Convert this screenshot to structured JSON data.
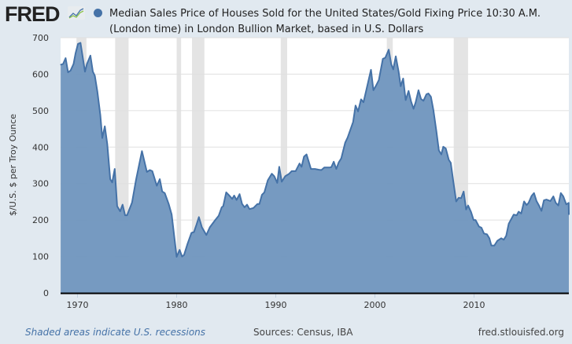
{
  "header": {
    "logo_text": "FRED",
    "title": "Median Sales Price of Houses Sold for the United States/Gold Fixing Price 10:30 A.M. (London time) in London Bullion Market, based in U.S. Dollars"
  },
  "footer": {
    "recession_note": "Shaded areas indicate U.S. recessions",
    "sources": "Sources: Census, IBA",
    "site": "fred.stlouisfed.org"
  },
  "colors": {
    "line": "#4572a7",
    "fill": "#7297bf",
    "recession": "#e4e4e4"
  },
  "chart_data": {
    "type": "area",
    "title": "Median Sales Price of Houses Sold for the United States/Gold Fixing Price 10:30 A.M. (London time) in London Bullion Market, based in U.S. Dollars",
    "xlabel": "",
    "ylabel": "$/U.S. $ per Troy Ounce",
    "ylim": [
      0,
      700
    ],
    "xlim": [
      1968.3,
      2019.75
    ],
    "yticks": [
      0,
      100,
      200,
      300,
      400,
      500,
      600,
      700
    ],
    "xticks": [
      1970,
      1980,
      1990,
      2000,
      2010
    ],
    "grid": true,
    "legend": "top",
    "recessions": [
      [
        1969.9,
        1970.9
      ],
      [
        1973.8,
        1975.15
      ],
      [
        1980.0,
        1980.45
      ],
      [
        1981.55,
        1982.8
      ],
      [
        1990.5,
        1991.15
      ],
      [
        2001.2,
        2001.8
      ],
      [
        2007.95,
        2009.4
      ]
    ],
    "x": [
      1968.3,
      1968.55,
      1968.8,
      1969.05,
      1969.3,
      1969.6,
      1969.8,
      1970.05,
      1970.3,
      1970.75,
      1970.95,
      1971.3,
      1971.55,
      1971.75,
      1972.0,
      1972.3,
      1972.5,
      1972.75,
      1973.0,
      1973.3,
      1973.5,
      1973.75,
      1974.0,
      1974.3,
      1974.55,
      1974.8,
      1975.0,
      1975.5,
      1975.9,
      1976.5,
      1977.0,
      1977.3,
      1977.55,
      1978.0,
      1978.3,
      1978.55,
      1978.8,
      1979.2,
      1979.5,
      1980.0,
      1980.3,
      1980.55,
      1980.75,
      1981.1,
      1981.5,
      1981.75,
      1982.0,
      1982.25,
      1982.55,
      1983.0,
      1983.35,
      1983.9,
      1984.25,
      1984.55,
      1984.7,
      1985.0,
      1985.35,
      1985.6,
      1985.8,
      1986.05,
      1986.35,
      1986.6,
      1986.85,
      1987.1,
      1987.35,
      1987.75,
      1988.15,
      1988.35,
      1988.6,
      1988.85,
      1989.2,
      1989.6,
      1989.85,
      1990.15,
      1990.35,
      1990.6,
      1990.95,
      1991.35,
      1991.6,
      1992.0,
      1992.4,
      1992.6,
      1992.85,
      1993.1,
      1993.55,
      1993.95,
      1994.35,
      1994.6,
      1994.9,
      1995.4,
      1995.6,
      1995.85,
      1996.1,
      1996.35,
      1996.6,
      1997.0,
      1997.25,
      1997.8,
      1998.05,
      1998.3,
      1998.6,
      1998.85,
      1999.6,
      1999.85,
      2000.1,
      2000.4,
      2000.8,
      2001.05,
      2001.4,
      2001.65,
      2001.85,
      2002.1,
      2002.4,
      2002.6,
      2002.85,
      2003.1,
      2003.4,
      2003.65,
      2003.9,
      2004.1,
      2004.4,
      2004.65,
      2004.9,
      2005.2,
      2005.4,
      2005.65,
      2005.9,
      2006.2,
      2006.45,
      2006.7,
      2006.9,
      2007.15,
      2007.45,
      2007.65,
      2007.9,
      2008.2,
      2008.45,
      2008.7,
      2008.95,
      2009.2,
      2009.4,
      2009.7,
      2009.95,
      2010.15,
      2010.5,
      2010.75,
      2011.0,
      2011.3,
      2011.55,
      2011.75,
      2012.05,
      2012.35,
      2012.75,
      2013.0,
      2013.25,
      2013.5,
      2014.0,
      2014.3,
      2014.5,
      2014.75,
      2015.05,
      2015.3,
      2015.5,
      2015.8,
      2016.05,
      2016.3,
      2016.55,
      2016.8,
      2017.05,
      2017.3,
      2017.7,
      2018.0,
      2018.25,
      2018.5,
      2018.75,
      2019.0,
      2019.3,
      2019.55,
      2019.75
    ],
    "series": [
      {
        "name": "Median Sales Price of Houses Sold / Gold Fixing Price",
        "values": [
          626,
          628,
          644,
          605,
          610,
          628,
          657,
          683,
          686,
          607,
          628,
          651,
          607,
          596,
          553,
          488,
          425,
          457,
          409,
          312,
          303,
          340,
          238,
          224,
          242,
          213,
          213,
          248,
          309,
          389,
          332,
          337,
          334,
          294,
          312,
          278,
          274,
          244,
          215,
          99,
          118,
          100,
          104,
          135,
          165,
          167,
          187,
          208,
          180,
          159,
          180,
          200,
          212,
          235,
          238,
          276,
          266,
          258,
          267,
          255,
          271,
          244,
          235,
          242,
          230,
          233,
          244,
          244,
          269,
          276,
          309,
          327,
          320,
          302,
          346,
          305,
          320,
          327,
          334,
          334,
          355,
          346,
          374,
          380,
          340,
          340,
          338,
          337,
          344,
          344,
          345,
          360,
          340,
          358,
          369,
          412,
          426,
          469,
          514,
          498,
          531,
          523,
          612,
          556,
          568,
          584,
          642,
          645,
          667,
          627,
          613,
          649,
          606,
          567,
          588,
          529,
          554,
          525,
          505,
          522,
          556,
          532,
          527,
          545,
          547,
          538,
          502,
          444,
          391,
          380,
          401,
          396,
          365,
          357,
          308,
          251,
          261,
          260,
          278,
          229,
          240,
          222,
          200,
          200,
          182,
          179,
          163,
          161,
          150,
          130,
          130,
          143,
          150,
          146,
          157,
          190,
          215,
          213,
          223,
          218,
          251,
          241,
          247,
          266,
          274,
          252,
          240,
          225,
          254,
          256,
          252,
          265,
          247,
          240,
          274,
          265,
          243,
          247,
          215
        ]
      }
    ]
  }
}
